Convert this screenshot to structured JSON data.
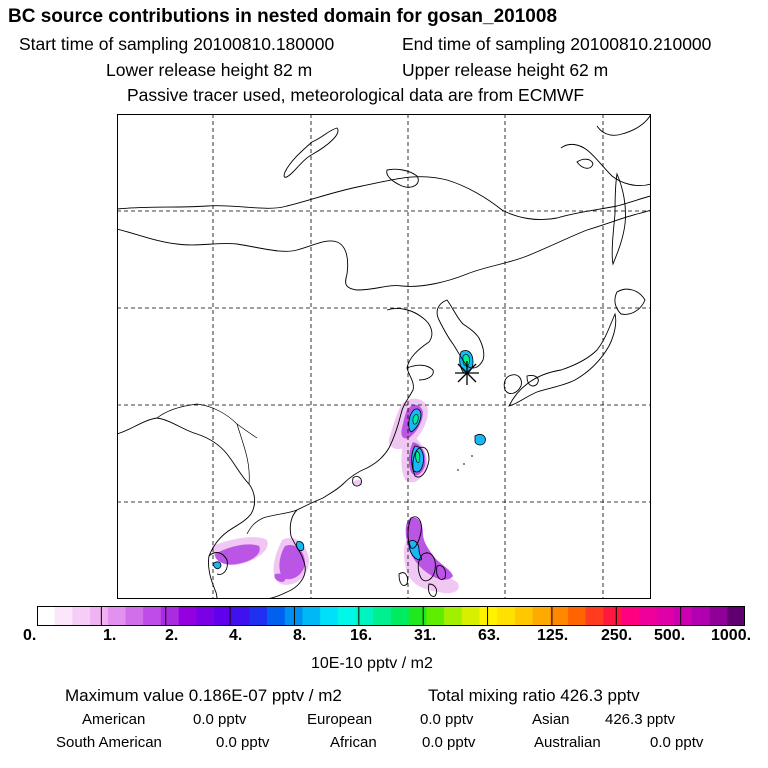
{
  "title": "BC  source contributions in nested domain for gosan_201008",
  "header": {
    "start_time": "Start time of sampling 20100810.180000",
    "end_time": "End time of sampling 20100810.210000",
    "lower_release": "Lower release height   82 m",
    "upper_release": "Upper release height   62 m",
    "tracer_note": "Passive tracer used, meteorological data are from ECMWF"
  },
  "map": {
    "receptor_icon": "star-asterisk-icon",
    "grid": "dashed"
  },
  "colorbar": {
    "tick_labels": [
      "0.",
      "1.",
      "2.",
      "4.",
      "8.",
      "16.",
      "31.",
      "63.",
      "125.",
      "250.",
      "500.",
      "1000."
    ],
    "colors": [
      "#ffffff",
      "#fbe6fb",
      "#f5cdf6",
      "#efb3f2",
      "#e292ee",
      "#d16ee9",
      "#bf4ce6",
      "#aa2ce0",
      "#9400e0",
      "#7a00e6",
      "#6000ec",
      "#4010ee",
      "#2030f0",
      "#0060f0",
      "#0090f4",
      "#00b8f6",
      "#00e0f8",
      "#00f8e8",
      "#00f4c0",
      "#00f090",
      "#00ec60",
      "#20e820",
      "#60ee00",
      "#a0f000",
      "#d8f000",
      "#fff200",
      "#ffe000",
      "#ffc800",
      "#ffaa00",
      "#ff8800",
      "#ff6400",
      "#ff3c20",
      "#ff1840",
      "#ff0080",
      "#f0009a",
      "#e000a8",
      "#cc00b0",
      "#b000b0",
      "#900098",
      "#600070"
    ],
    "units": "10E-10 pptv / m2"
  },
  "summary": {
    "max_value": "Maximum value  0.186E-07 pptv / m2",
    "total_mixing": "Total mixing ratio      426.3 pptv",
    "regions": [
      {
        "name": "American",
        "value": "0.0 pptv"
      },
      {
        "name": "European",
        "value": "0.0 pptv"
      },
      {
        "name": "Asian",
        "value": "426.3 pptv"
      },
      {
        "name": "South American",
        "value": "0.0 pptv"
      },
      {
        "name": "African",
        "value": "0.0 pptv"
      },
      {
        "name": "Australian",
        "value": "0.0 pptv"
      }
    ]
  }
}
